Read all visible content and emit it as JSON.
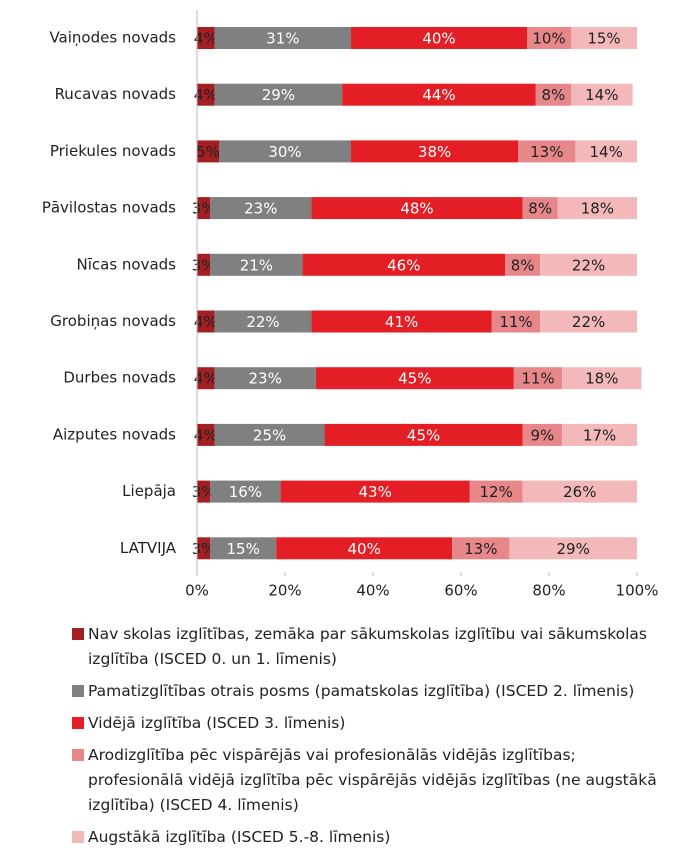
{
  "chart_data": {
    "type": "stacked_bar_horizontal",
    "categories": [
      "Vaiņodes novads",
      "Rucavas novads",
      "Priekules novads",
      "Pāvilostas novads",
      "Nīcas novads",
      "Grobiņas novads",
      "Durbes novads",
      "Aizputes novads",
      "Liepāja",
      "LATVIJA"
    ],
    "series": [
      {
        "name": "Nav skolas izglītības, zemāka par sākumskolas izglītību vai sākumskolas izglītība (ISCED 0. un 1. līmenis)",
        "color": "#a31f24",
        "values": [
          4,
          4,
          5,
          3,
          3,
          4,
          4,
          4,
          3,
          3
        ],
        "value_labels": [
          "4%",
          "4%",
          "5%",
          "3%",
          "3%",
          "4%",
          "4%",
          "4%",
          "3%",
          "3%"
        ]
      },
      {
        "name": "Pamatizglītības otrais posms (pamatskolas izglītība) (ISCED 2. līmenis)",
        "color": "#808080",
        "values": [
          31,
          29,
          30,
          23,
          21,
          22,
          23,
          25,
          16,
          15
        ],
        "value_labels": [
          "31%",
          "29%",
          "30%",
          "23%",
          "21%",
          "22%",
          "23%",
          "25%",
          "16%",
          "15%"
        ]
      },
      {
        "name": "Vidējā izglītība (ISCED 3. līmenis)",
        "color": "#e31e24",
        "values": [
          40,
          44,
          38,
          48,
          46,
          41,
          45,
          45,
          43,
          40
        ],
        "value_labels": [
          "40%",
          "44%",
          "38%",
          "48%",
          "46%",
          "41%",
          "45%",
          "45%",
          "43%",
          "40%"
        ]
      },
      {
        "name": "Arodizglītība pēc vispārējās vai profesionālās vidējās izglītības; profesionālā vidējā izglītība pēc vispārējās vidējās izglītības (ne augstākā izglītība) (ISCED 4. līmenis)",
        "color": "#e8878a",
        "values": [
          10,
          8,
          13,
          8,
          8,
          11,
          11,
          9,
          12,
          13
        ],
        "value_labels": [
          "10%",
          "8%",
          "13%",
          "8%",
          "8%",
          "11%",
          "11%",
          "9%",
          "12%",
          "13%"
        ]
      },
      {
        "name": "Augstākā izglītība (ISCED 5.-8. līmenis)",
        "color": "#f2b8ba",
        "values": [
          15,
          14,
          14,
          18,
          22,
          22,
          18,
          17,
          26,
          29
        ],
        "value_labels": [
          "15%",
          "14%",
          "14%",
          "18%",
          "22%",
          "22%",
          "18%",
          "17%",
          "26%",
          "29%"
        ]
      }
    ],
    "xlim": [
      0,
      100
    ],
    "xticks": [
      {
        "value": 0,
        "label": "0%"
      },
      {
        "value": 20,
        "label": "20%"
      },
      {
        "value": 40,
        "label": "40%"
      },
      {
        "value": 60,
        "label": "60%"
      },
      {
        "value": 80,
        "label": "80%"
      },
      {
        "value": 100,
        "label": "100%"
      }
    ],
    "legend": "bottom"
  }
}
